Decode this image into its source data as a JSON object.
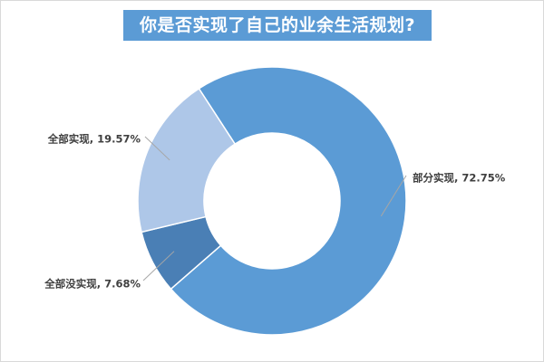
{
  "chart_data": {
    "type": "pie",
    "style": "donut",
    "title": "你是否实现了自己的业余生活规划?",
    "categories": [
      "部分实现",
      "全部没实现",
      "全部实现"
    ],
    "values": [
      72.75,
      7.68,
      19.57
    ],
    "unit": "%",
    "colors": [
      "#5b9bd5",
      "#4a7fb5",
      "#aec7e8"
    ],
    "data_labels": [
      "部分实现, 72.75%",
      "全部没实现, 7.68%",
      "全部实现, 19.57%"
    ]
  }
}
